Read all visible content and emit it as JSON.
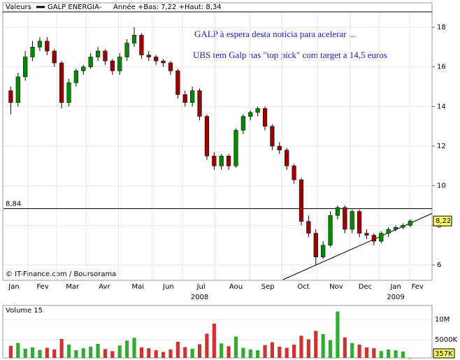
{
  "chart_data": {
    "type": "candlestick",
    "legend_label": "Valeurs",
    "series_name": "GALP ENERGIA-",
    "stats": "Année +Bas: 7,22 +Haut: 8,34",
    "annotations": [
      "GALP à espera desta noticia para acelerar ...",
      "UBS tem Galp nas \"top pick\"  com  target a 14,5 euros"
    ],
    "credit": "© IT-Finance.com / Boursorama",
    "years": [
      {
        "value": 26.0,
        "label": "2008"
      },
      {
        "value": 53.0,
        "label": "2009"
      }
    ],
    "x": [
      0,
      1,
      2,
      3,
      4,
      5,
      6,
      7,
      8,
      9,
      10,
      11,
      12,
      13,
      14,
      15,
      16,
      17,
      18,
      19,
      20,
      21,
      22,
      23,
      24,
      25,
      26,
      27,
      28,
      29,
      30,
      31,
      32,
      33,
      34,
      35,
      36,
      37,
      38,
      39,
      40,
      41,
      42,
      43,
      44,
      45,
      46,
      47,
      48,
      49,
      50,
      51,
      52,
      53,
      54,
      55
    ],
    "open": [
      14.8,
      14.2,
      15.5,
      16.5,
      17.0,
      17.3,
      16.8,
      16.2,
      14.2,
      15.2,
      15.8,
      16.0,
      16.5,
      16.8,
      16.3,
      15.8,
      16.5,
      17.2,
      17.6,
      16.6,
      16.5,
      16.3,
      16.2,
      15.8,
      14.6,
      14.2,
      14.8,
      13.5,
      11.5,
      11.0,
      11.5,
      11.0,
      12.8,
      13.5,
      13.7,
      13.9,
      13.0,
      12.0,
      11.8,
      11.0,
      10.3,
      8.2,
      7.6,
      6.4,
      7.0,
      8.5,
      8.9,
      7.8,
      8.7,
      7.6,
      7.5,
      7.2,
      7.6,
      7.8,
      7.9,
      8.0
    ],
    "high": [
      15.0,
      15.7,
      16.8,
      17.3,
      17.5,
      17.5,
      16.9,
      16.3,
      15.4,
      15.9,
      16.1,
      16.7,
      17.0,
      16.9,
      16.4,
      16.7,
      17.4,
      18.0,
      17.7,
      16.8,
      16.6,
      16.4,
      16.3,
      15.9,
      14.8,
      15.0,
      14.9,
      13.6,
      11.7,
      11.6,
      11.6,
      12.9,
      13.6,
      13.8,
      14.0,
      14.0,
      13.1,
      12.2,
      11.9,
      11.1,
      10.4,
      8.5,
      7.8,
      7.2,
      8.7,
      9.0,
      9.0,
      8.8,
      8.8,
      7.8,
      7.6,
      7.7,
      7.9,
      8.0,
      8.1,
      8.3
    ],
    "low": [
      13.6,
      14.0,
      15.3,
      16.3,
      16.8,
      16.6,
      16.0,
      13.9,
      14.0,
      15.0,
      15.6,
      15.9,
      16.3,
      16.1,
      15.6,
      15.6,
      16.3,
      17.0,
      16.4,
      16.3,
      16.1,
      16.0,
      15.6,
      14.4,
      14.0,
      14.0,
      13.3,
      11.3,
      10.8,
      10.8,
      10.8,
      10.9,
      12.6,
      13.3,
      13.5,
      12.8,
      11.8,
      11.6,
      10.8,
      10.1,
      8.0,
      7.4,
      6.0,
      6.3,
      6.9,
      8.3,
      7.6,
      7.6,
      7.4,
      7.3,
      7.0,
      7.1,
      7.4,
      7.7,
      7.8,
      7.9
    ],
    "close": [
      14.2,
      15.5,
      16.5,
      17.0,
      17.3,
      16.8,
      16.2,
      14.2,
      15.2,
      15.8,
      16.0,
      16.5,
      16.8,
      16.3,
      15.8,
      16.5,
      17.2,
      17.6,
      16.6,
      16.5,
      16.3,
      16.2,
      15.8,
      14.6,
      14.2,
      14.8,
      13.5,
      11.5,
      11.0,
      11.5,
      11.0,
      12.8,
      13.5,
      13.7,
      13.9,
      13.0,
      12.0,
      11.8,
      11.0,
      10.3,
      8.2,
      7.6,
      6.4,
      7.0,
      8.5,
      8.9,
      7.8,
      8.7,
      7.6,
      7.5,
      7.2,
      7.6,
      7.8,
      7.9,
      8.0,
      8.22
    ],
    "up_color": "#008800",
    "down_color": "#990000",
    "xlim": [
      -1,
      58
    ],
    "ylim": [
      5.26,
      19.2
    ],
    "xticks": [
      {
        "value": 0.44,
        "label": "Jan"
      },
      {
        "value": 4.4,
        "label": "Fev"
      },
      {
        "value": 8.5,
        "label": "Mar"
      },
      {
        "value": 12.9,
        "label": "Avr"
      },
      {
        "value": 17.5,
        "label": "Mai"
      },
      {
        "value": 21.7,
        "label": "Jun"
      },
      {
        "value": 26.2,
        "label": "Jul"
      },
      {
        "value": 31.0,
        "label": "Aou"
      },
      {
        "value": 35.4,
        "label": "Sep"
      },
      {
        "value": 40.3,
        "label": "Oct"
      },
      {
        "value": 44.8,
        "label": "Nov"
      },
      {
        "value": 48.8,
        "label": "Dec"
      },
      {
        "value": 53.0,
        "label": "Jan"
      },
      {
        "value": 56.0,
        "label": "Fev"
      }
    ],
    "yticks": [
      6,
      8,
      10,
      12,
      14,
      16,
      18
    ],
    "grid": true,
    "reference_line": {
      "value": 8.84,
      "label": "8,84"
    },
    "last_price": {
      "value": 8.22,
      "label": "8,22"
    },
    "trend_line": {
      "x": [
        37.5,
        58
      ],
      "y": [
        5.26,
        8.6
      ]
    },
    "volume": {
      "title": "Volume 15",
      "values": [
        3.5,
        4.2,
        2.8,
        3.1,
        2.5,
        3.0,
        2.6,
        5.2,
        3.8,
        2.4,
        2.9,
        3.3,
        4.0,
        2.7,
        2.2,
        3.6,
        4.8,
        5.5,
        3.1,
        2.9,
        2.4,
        2.0,
        2.6,
        4.5,
        3.2,
        2.8,
        3.9,
        6.5,
        9.0,
        4.1,
        3.4,
        5.8,
        3.0,
        2.6,
        2.4,
        3.7,
        4.4,
        3.3,
        3.0,
        3.8,
        6.0,
        5.1,
        7.2,
        6.4,
        4.9,
        12.0,
        5.6,
        4.2,
        3.8,
        3.1,
        2.9,
        2.2,
        2.6,
        2.4,
        2.1,
        0.357
      ],
      "last_label": "357K",
      "ylim": [
        0,
        13.3
      ],
      "yticks": [
        {
          "value": 10,
          "label": "10M"
        },
        {
          "value": 5,
          "label": "5000K"
        }
      ]
    }
  }
}
